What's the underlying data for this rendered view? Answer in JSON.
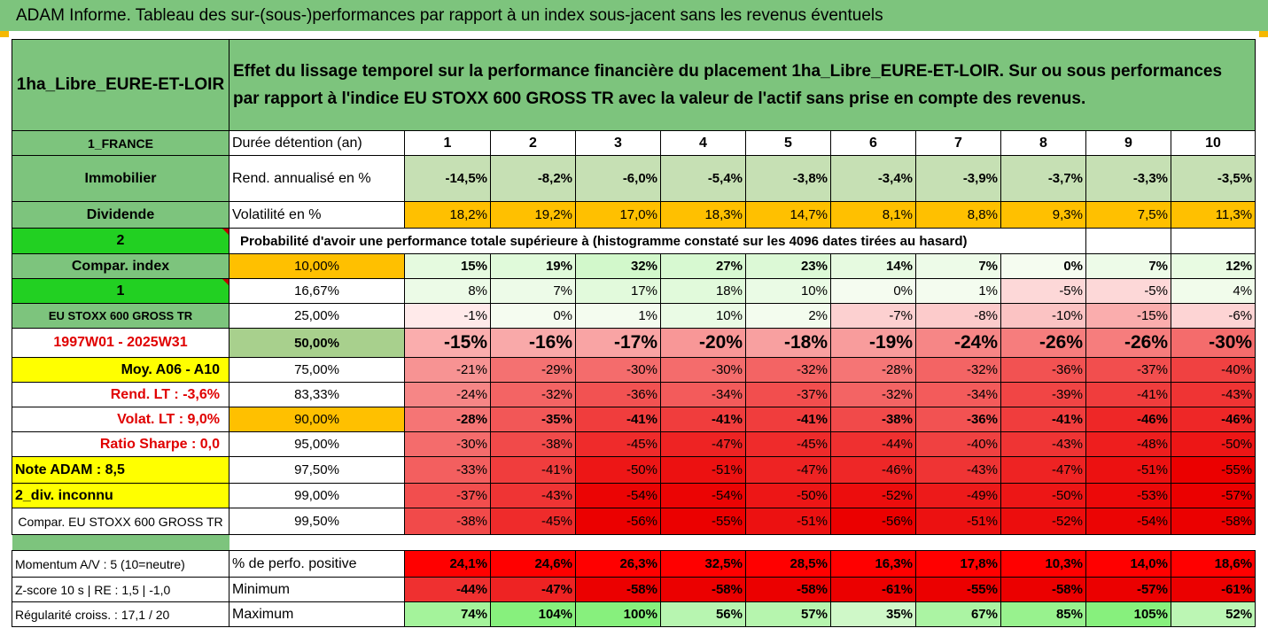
{
  "title": "ADAM Informe. Tableau des sur-(sous-)performances par rapport à un index sous-jacent sans les revenus éventuels",
  "header": {
    "asset": "1ha_Libre_EURE-ET-LOIR",
    "description": "Effet du lissage temporel sur la performance financière du placement 1ha_Libre_EURE-ET-LOIR. Sur ou sous performances par rapport à l'indice EU STOXX 600 GROSS TR avec la valeur de l'actif sans prise en compte des revenus."
  },
  "years_row": {
    "left": "1_FRANCE",
    "label": "Durée détention (an)",
    "values": [
      "1",
      "2",
      "3",
      "4",
      "5",
      "6",
      "7",
      "8",
      "9",
      "10"
    ]
  },
  "rend_row": {
    "left": "Immobilier",
    "label": "Rend. annualisé en %",
    "values": [
      "-14,5%",
      "-8,2%",
      "-6,0%",
      "-5,4%",
      "-3,8%",
      "-3,4%",
      "-3,9%",
      "-3,7%",
      "-3,3%",
      "-3,5%"
    ]
  },
  "vol_row": {
    "left": "Dividende",
    "label": "Volatilité en %",
    "values": [
      "18,2%",
      "19,2%",
      "17,0%",
      "18,3%",
      "14,7%",
      "8,1%",
      "8,8%",
      "9,3%",
      "7,5%",
      "11,3%"
    ]
  },
  "prob_row": {
    "left": "2",
    "label": "Probabilité d'avoir une performance totale supérieure à (histogramme constaté sur les 4096 dates tirées au hasard)"
  },
  "pct_rows": [
    {
      "left": "Compar. index",
      "pct": "10,00%",
      "values": [
        "15%",
        "19%",
        "32%",
        "27%",
        "23%",
        "14%",
        "7%",
        "0%",
        "7%",
        "12%"
      ]
    },
    {
      "left": "1",
      "pct": "16,67%",
      "values": [
        "8%",
        "7%",
        "17%",
        "18%",
        "10%",
        "0%",
        "1%",
        "-5%",
        "-5%",
        "4%"
      ]
    },
    {
      "left": "EU STOXX 600 GROSS TR",
      "pct": "25,00%",
      "values": [
        "-1%",
        "0%",
        "1%",
        "10%",
        "2%",
        "-7%",
        "-8%",
        "-10%",
        "-15%",
        "-6%"
      ]
    },
    {
      "left": "1997W01 - 2025W31",
      "pct": "50,00%",
      "values": [
        "-15%",
        "-16%",
        "-17%",
        "-20%",
        "-18%",
        "-19%",
        "-24%",
        "-26%",
        "-26%",
        "-30%"
      ]
    },
    {
      "left": "Moy. A06 - A10",
      "pct": "75,00%",
      "values": [
        "-21%",
        "-29%",
        "-30%",
        "-30%",
        "-32%",
        "-28%",
        "-32%",
        "-36%",
        "-37%",
        "-40%"
      ]
    },
    {
      "left": "Rend. LT :   -3,6%",
      "pct": "83,33%",
      "values": [
        "-24%",
        "-32%",
        "-36%",
        "-34%",
        "-37%",
        "-32%",
        "-34%",
        "-39%",
        "-41%",
        "-43%"
      ]
    },
    {
      "left": "Volat. LT :   9,0%",
      "pct": "90,00%",
      "values": [
        "-28%",
        "-35%",
        "-41%",
        "-41%",
        "-41%",
        "-38%",
        "-36%",
        "-41%",
        "-46%",
        "-46%"
      ]
    },
    {
      "left": "Ratio Sharpe :   0,0",
      "pct": "95,00%",
      "values": [
        "-30%",
        "-38%",
        "-45%",
        "-47%",
        "-45%",
        "-44%",
        "-40%",
        "-43%",
        "-48%",
        "-50%"
      ]
    },
    {
      "left": "Note ADAM : 8,5",
      "pct": "97,50%",
      "values": [
        "-33%",
        "-41%",
        "-50%",
        "-51%",
        "-47%",
        "-46%",
        "-43%",
        "-47%",
        "-51%",
        "-55%"
      ]
    },
    {
      "left": "2_div. inconnu",
      "pct": "99,00%",
      "values": [
        "-37%",
        "-43%",
        "-54%",
        "-54%",
        "-50%",
        "-52%",
        "-49%",
        "-50%",
        "-53%",
        "-57%"
      ]
    },
    {
      "left": "Compar. EU STOXX 600 GROSS TR",
      "pct": "99,50%",
      "values": [
        "-38%",
        "-45%",
        "-56%",
        "-55%",
        "-51%",
        "-56%",
        "-51%",
        "-52%",
        "-54%",
        "-58%"
      ]
    }
  ],
  "stats_rows": [
    {
      "left": "Momentum A/V : 5 (10=neutre)",
      "label": "% de perfo. positive",
      "values": [
        "24,1%",
        "24,6%",
        "26,3%",
        "32,5%",
        "28,5%",
        "16,3%",
        "17,8%",
        "10,3%",
        "14,0%",
        "18,6%"
      ]
    },
    {
      "left": "Z-score 10 s  | RE : 1,5  | -1,0",
      "label": "Minimum",
      "values": [
        "-44%",
        "-47%",
        "-58%",
        "-58%",
        "-58%",
        "-61%",
        "-55%",
        "-58%",
        "-57%",
        "-61%"
      ]
    },
    {
      "left": "Régularité croiss. : 17,1 / 20",
      "label": "Maximum",
      "values": [
        "74%",
        "104%",
        "100%",
        "56%",
        "57%",
        "35%",
        "67%",
        "85%",
        "105%",
        "52%"
      ]
    }
  ],
  "colors": {
    "accent_green": "#7dc47d",
    "bright_green": "#22d022",
    "yellow": "#ffff00",
    "orange": "#ffc000",
    "red": "#ff0000",
    "label_red": "#e00000"
  }
}
